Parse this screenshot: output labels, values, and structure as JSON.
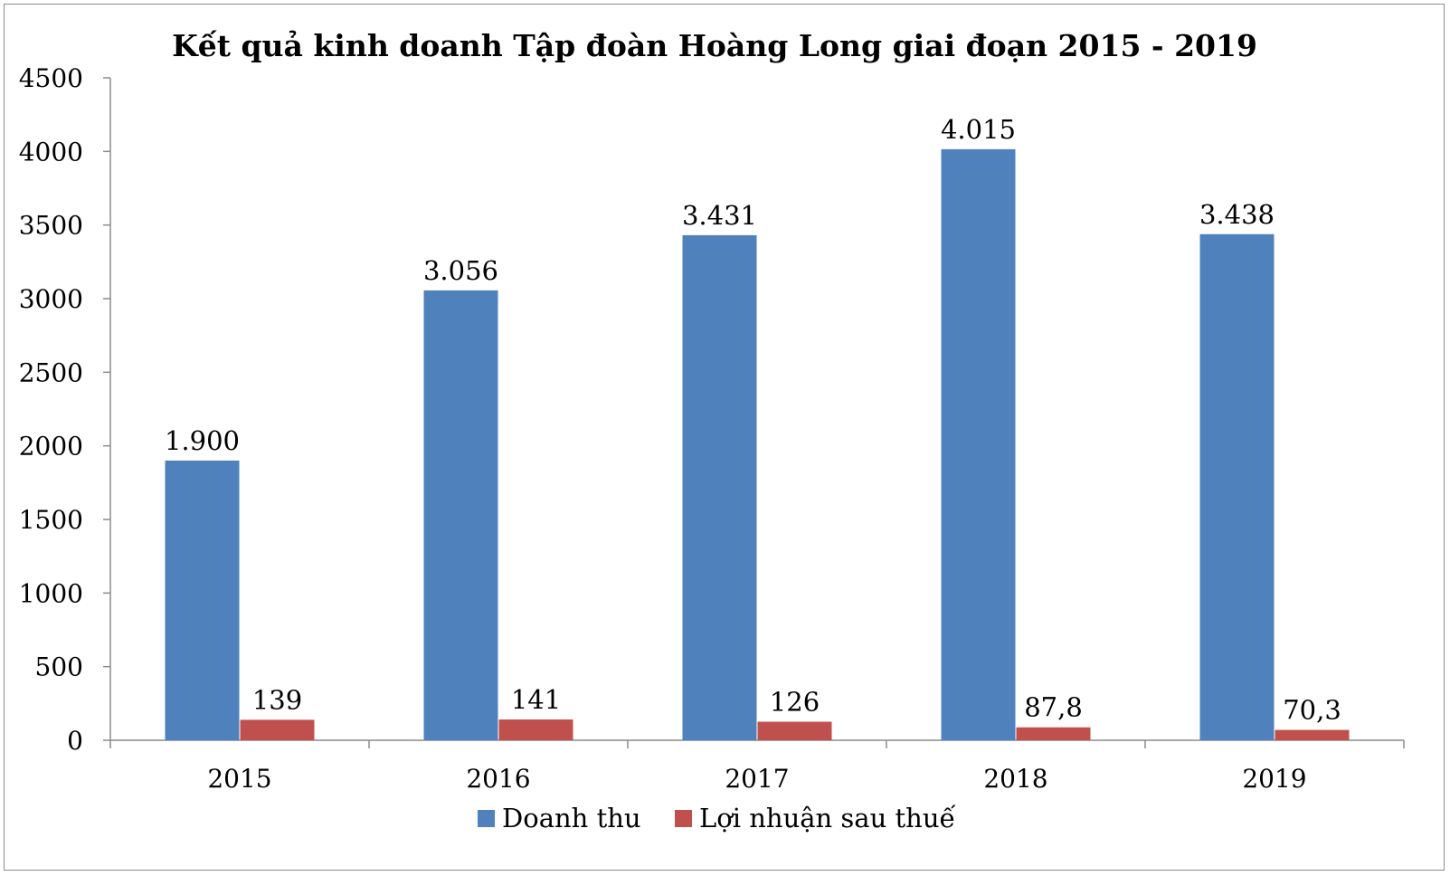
{
  "chart_data": {
    "type": "bar",
    "title": "Kết quả kinh doanh Tập đoàn Hoàng Long giai đoạn 2015 - 2019",
    "xlabel": "",
    "ylabel": "",
    "categories": [
      "2015",
      "2016",
      "2017",
      "2018",
      "2019"
    ],
    "ylim": [
      0,
      4500
    ],
    "yticks": [
      "0",
      "500",
      "1000",
      "1500",
      "2000",
      "2500",
      "3000",
      "3500",
      "4000",
      "4500"
    ],
    "ytick_values": [
      0,
      500,
      1000,
      1500,
      2000,
      2500,
      3000,
      3500,
      4000,
      4500
    ],
    "grid": false,
    "legend_position": "bottom",
    "series": [
      {
        "name": "Doanh thu",
        "color": "#4f81bd",
        "values": [
          1900,
          3056,
          3431,
          4015,
          3438
        ],
        "labels": [
          "1.900",
          "3.056",
          "3.431",
          "4.015",
          "3.438"
        ]
      },
      {
        "name": "Lợi nhuận sau thuế",
        "color": "#c0504d",
        "values": [
          139,
          141,
          126,
          87.8,
          70.3
        ],
        "labels": [
          "139",
          "141",
          "126",
          "87,8",
          "70,3"
        ]
      }
    ]
  }
}
